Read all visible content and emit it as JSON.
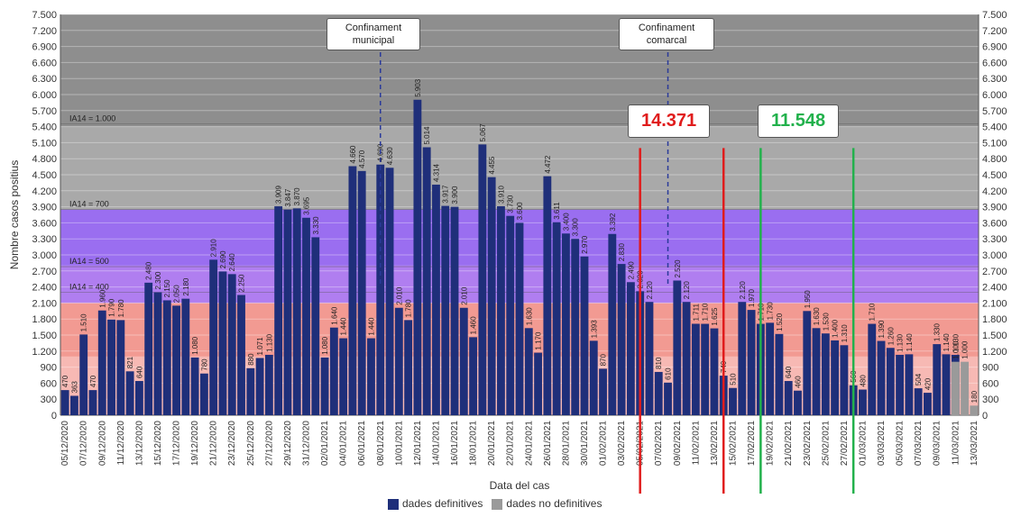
{
  "chart_data": {
    "type": "bar",
    "ylabel": "Nombre casos positius",
    "xlabel": "Data del cas",
    "ylim": [
      0,
      7500
    ],
    "y_ticks": [
      0,
      300,
      600,
      900,
      1200,
      1500,
      1800,
      2100,
      2400,
      2700,
      3000,
      3300,
      3600,
      3900,
      4200,
      4500,
      4800,
      5100,
      5400,
      5700,
      6000,
      6300,
      6600,
      6900,
      7200,
      7500
    ],
    "y_tick_labels": [
      "0",
      "300",
      "600",
      "900",
      "1.200",
      "1.500",
      "1.800",
      "2.100",
      "2.400",
      "2.700",
      "3.000",
      "3.300",
      "3.600",
      "3.900",
      "4.200",
      "4.500",
      "4.800",
      "5.100",
      "5.400",
      "5.700",
      "6.000",
      "6.300",
      "6.600",
      "6.900",
      "7.200",
      "7.500"
    ],
    "dates": [
      "05/12/2020",
      "06/12/2020",
      "07/12/2020",
      "08/12/2020",
      "09/12/2020",
      "10/12/2020",
      "11/12/2020",
      "12/12/2020",
      "13/12/2020",
      "14/12/2020",
      "15/12/2020",
      "16/12/2020",
      "17/12/2020",
      "18/12/2020",
      "19/12/2020",
      "20/12/2020",
      "21/12/2020",
      "22/12/2020",
      "23/12/2020",
      "24/12/2020",
      "25/12/2020",
      "26/12/2020",
      "27/12/2020",
      "28/12/2020",
      "29/12/2020",
      "30/12/2020",
      "31/12/2020",
      "01/01/2021",
      "02/01/2021",
      "03/01/2021",
      "04/01/2021",
      "05/01/2021",
      "06/01/2021",
      "07/01/2021",
      "08/01/2021",
      "09/01/2021",
      "10/01/2021",
      "11/01/2021",
      "12/01/2021",
      "13/01/2021",
      "14/01/2021",
      "15/01/2021",
      "16/01/2021",
      "17/01/2021",
      "18/01/2021",
      "19/01/2021",
      "20/01/2021",
      "21/01/2021",
      "22/01/2021",
      "23/01/2021",
      "24/01/2021",
      "25/01/2021",
      "26/01/2021",
      "27/01/2021",
      "28/01/2021",
      "29/01/2021",
      "30/01/2021",
      "31/01/2021",
      "01/02/2021",
      "02/02/2021",
      "03/02/2021",
      "04/02/2021",
      "05/02/2021",
      "06/02/2021",
      "07/02/2021",
      "08/02/2021",
      "09/02/2021",
      "10/02/2021",
      "11/02/2021",
      "12/02/2021",
      "13/02/2021",
      "14/02/2021",
      "15/02/2021",
      "16/02/2021",
      "17/02/2021",
      "18/02/2021",
      "19/02/2021",
      "20/02/2021",
      "21/02/2021",
      "22/02/2021",
      "23/02/2021",
      "24/02/2021",
      "25/02/2021",
      "26/02/2021",
      "27/02/2021",
      "28/02/2021",
      "01/03/2021",
      "02/03/2021",
      "03/03/2021",
      "04/03/2021",
      "05/03/2021",
      "06/03/2021",
      "07/03/2021",
      "08/03/2021",
      "09/03/2021",
      "10/03/2021",
      "11/03/2021",
      "12/03/2021",
      "13/03/2021"
    ],
    "x_tick_labels": [
      "05/12/2020",
      "07/12/2020",
      "09/12/2020",
      "11/12/2020",
      "13/12/2020",
      "15/12/2020",
      "17/12/2020",
      "19/12/2020",
      "21/12/2020",
      "23/12/2020",
      "25/12/2020",
      "27/12/2020",
      "29/12/2020",
      "31/12/2020",
      "02/01/2021",
      "04/01/2021",
      "06/01/2021",
      "08/01/2021",
      "10/01/2021",
      "12/01/2021",
      "14/01/2021",
      "16/01/2021",
      "18/01/2021",
      "20/01/2021",
      "22/01/2021",
      "24/01/2021",
      "26/01/2021",
      "28/01/2021",
      "30/01/2021",
      "01/02/2021",
      "03/02/2021",
      "05/02/2021",
      "07/02/2021",
      "09/02/2021",
      "11/02/2021",
      "13/02/2021",
      "15/02/2021",
      "17/02/2021",
      "19/02/2021",
      "21/02/2021",
      "23/02/2021",
      "25/02/2021",
      "27/02/2021",
      "01/03/2021",
      "03/03/2021",
      "05/03/2021",
      "07/03/2021",
      "09/03/2021",
      "11/03/2021",
      "13/03/2021"
    ],
    "series": [
      {
        "name": "dades definitives",
        "color": "#1f2f7a",
        "values": [
          470,
          363,
          1510,
          470,
          1960,
          1790,
          1780,
          821,
          640,
          2480,
          2300,
          2150,
          2050,
          2180,
          1080,
          780,
          2910,
          2690,
          2640,
          2250,
          880,
          1071,
          1130,
          3909,
          3847,
          3870,
          3695,
          3330,
          1080,
          1640,
          1440,
          4660,
          4570,
          1440,
          4690,
          4630,
          2010,
          1780,
          5903,
          5014,
          4314,
          3917,
          3900,
          2010,
          1460,
          5067,
          4455,
          3910,
          3730,
          3600,
          1630,
          1170,
          4472,
          3611,
          3400,
          3300,
          2970,
          1393,
          870,
          3392,
          2830,
          2490,
          2320,
          2120,
          810,
          610,
          2520,
          2120,
          1711,
          1710,
          1625,
          740,
          510,
          2120,
          1970,
          1710,
          1730,
          1520,
          640,
          460,
          1950,
          1630,
          1530,
          1400,
          1310,
          560,
          480,
          1710,
          1390,
          1260,
          1130,
          1140,
          504,
          420,
          1330,
          1140,
          1130,
          0,
          0
        ]
      },
      {
        "name": "dades no definitives",
        "color": "#9a9a9a",
        "values": [
          0,
          0,
          0,
          0,
          0,
          0,
          0,
          0,
          0,
          0,
          0,
          0,
          0,
          0,
          0,
          0,
          0,
          0,
          0,
          0,
          0,
          0,
          0,
          0,
          0,
          0,
          0,
          0,
          0,
          0,
          0,
          0,
          0,
          0,
          0,
          0,
          0,
          0,
          0,
          0,
          0,
          0,
          0,
          0,
          0,
          0,
          0,
          0,
          0,
          0,
          0,
          0,
          0,
          0,
          0,
          0,
          0,
          0,
          0,
          0,
          0,
          0,
          0,
          0,
          0,
          0,
          0,
          0,
          0,
          0,
          0,
          0,
          0,
          0,
          0,
          0,
          0,
          0,
          0,
          0,
          0,
          0,
          0,
          0,
          0,
          0,
          0,
          0,
          0,
          0,
          0,
          0,
          0,
          0,
          0,
          0,
          1000,
          1000,
          180
        ]
      }
    ],
    "bands": [
      {
        "from": 0,
        "to": 2100,
        "color": "#f29a92"
      },
      {
        "from": 2100,
        "to": 2800,
        "color": "#b07ef0"
      },
      {
        "from": 2800,
        "to": 3850,
        "color": "#9a6ef0"
      },
      {
        "from": 3850,
        "to": 5400,
        "color": "#a9a9a9"
      },
      {
        "from": 5400,
        "to": 7500,
        "color": "#8e8e8e"
      }
    ],
    "thresholds": [
      {
        "label": "IA14 = 1.000",
        "value": 5450
      },
      {
        "label": "IA14 = 700",
        "value": 3850
      },
      {
        "label": "IA14 = 500",
        "value": 2780
      },
      {
        "label": "IA14 = 400",
        "value": 2300
      }
    ],
    "annotations": {
      "confinament_municipal": {
        "text": "Confinament municipal",
        "date_index": 34
      },
      "confinament_comarcal": {
        "text": "Confinament comarcal",
        "date_index": 65
      },
      "sum_red": {
        "text": "14.371",
        "from_index": 62,
        "to_index": 71,
        "color": "#e01c1c"
      },
      "sum_green": {
        "text": "11.548",
        "from_index": 75,
        "to_index": 85,
        "color": "#22b14c"
      }
    },
    "legend": [
      "dades definitives",
      "dades no definitives"
    ]
  }
}
